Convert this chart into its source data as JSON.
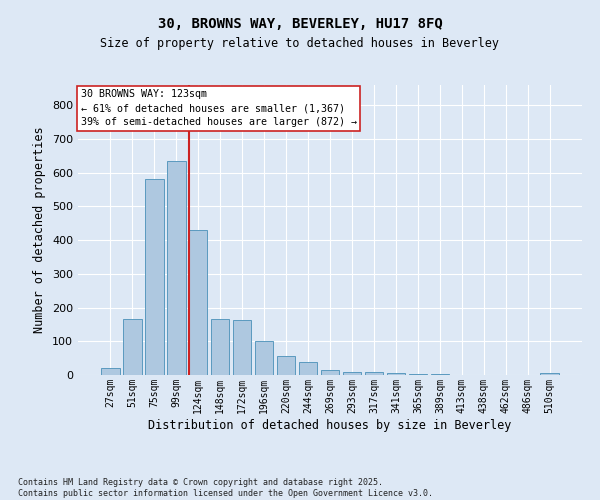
{
  "title": "30, BROWNS WAY, BEVERLEY, HU17 8FQ",
  "subtitle": "Size of property relative to detached houses in Beverley",
  "xlabel": "Distribution of detached houses by size in Beverley",
  "ylabel": "Number of detached properties",
  "categories": [
    "27sqm",
    "51sqm",
    "75sqm",
    "99sqm",
    "124sqm",
    "148sqm",
    "172sqm",
    "196sqm",
    "220sqm",
    "244sqm",
    "269sqm",
    "293sqm",
    "317sqm",
    "341sqm",
    "365sqm",
    "389sqm",
    "413sqm",
    "438sqm",
    "462sqm",
    "486sqm",
    "510sqm"
  ],
  "values": [
    20,
    165,
    580,
    635,
    430,
    165,
    162,
    102,
    57,
    38,
    15,
    10,
    9,
    5,
    3,
    2,
    1,
    0,
    0,
    0,
    5
  ],
  "bar_color": "#aec8e0",
  "bar_edge_color": "#5a9abf",
  "vline_color": "#cc2222",
  "annotation_box_facecolor": "#ffffff",
  "annotation_box_edgecolor": "#cc2222",
  "annotation_title": "30 BROWNS WAY: 123sqm",
  "annotation_line1": "← 61% of detached houses are smaller (1,367)",
  "annotation_line2": "39% of semi-detached houses are larger (872) →",
  "bg_color": "#dde8f5",
  "plot_bg_color": "#dde8f5",
  "grid_color": "#ffffff",
  "ylim": [
    0,
    860
  ],
  "yticks": [
    0,
    100,
    200,
    300,
    400,
    500,
    600,
    700,
    800
  ],
  "vline_bar_index": 4,
  "footer_line1": "Contains HM Land Registry data © Crown copyright and database right 2025.",
  "footer_line2": "Contains public sector information licensed under the Open Government Licence v3.0."
}
